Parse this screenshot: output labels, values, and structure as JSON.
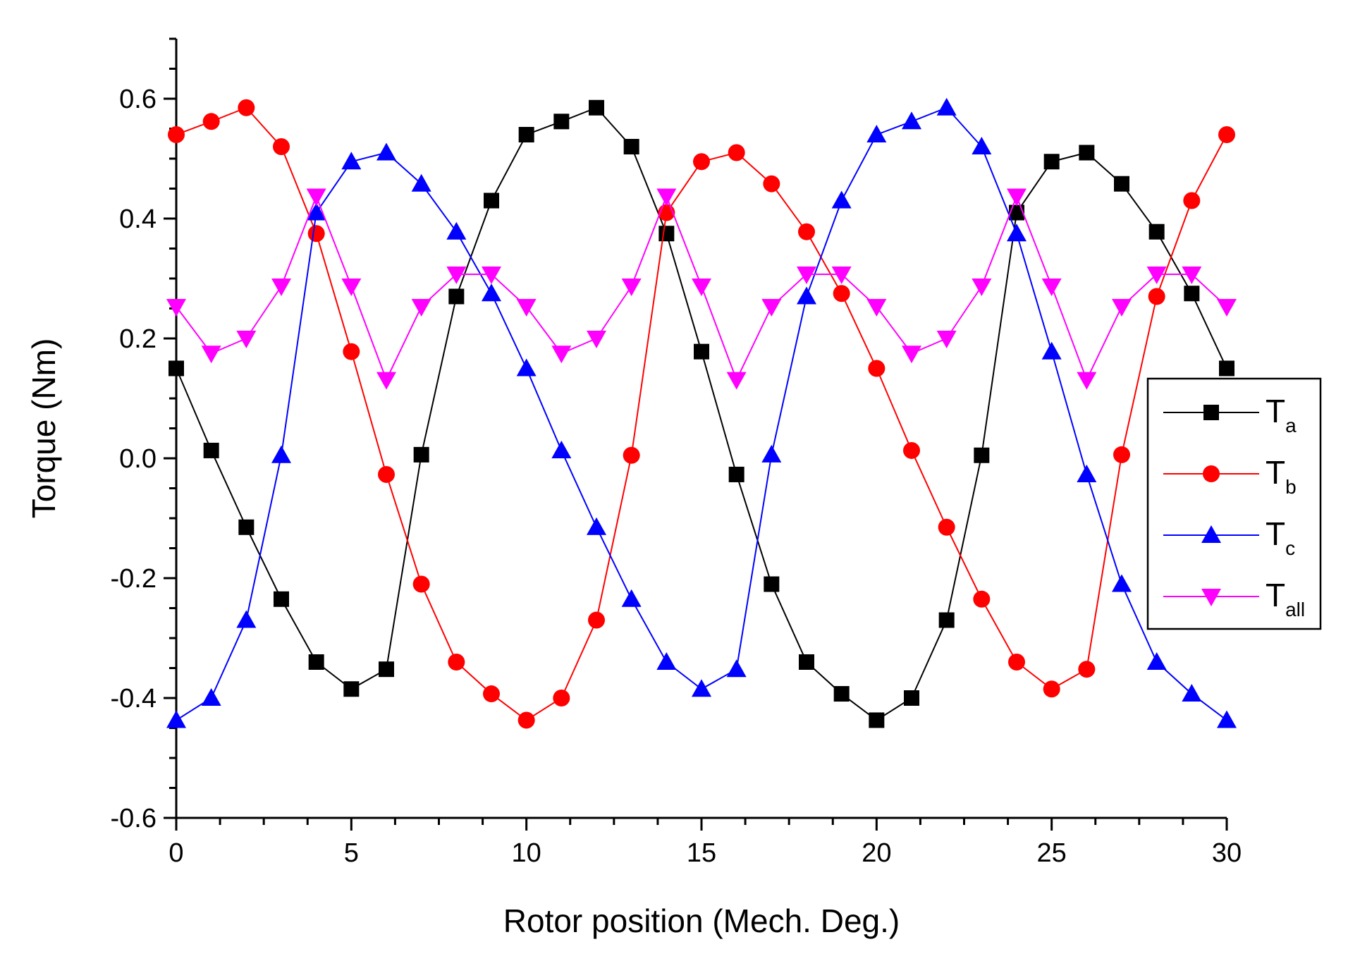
{
  "chart_data": {
    "type": "line",
    "title": "",
    "xlabel": "Rotor position (Mech. Deg.)",
    "ylabel": "Torque (Nm)",
    "xlim": [
      0,
      30
    ],
    "ylim": [
      -0.6,
      0.7
    ],
    "xticks": [
      0,
      5,
      10,
      15,
      20,
      25,
      30
    ],
    "xtick_labels": [
      "0",
      "5",
      "10",
      "15",
      "20",
      "25",
      "30"
    ],
    "yticks": [
      -0.6,
      -0.4,
      -0.2,
      0.0,
      0.2,
      0.4,
      0.6
    ],
    "ytick_labels": [
      "-0.6",
      "-0.4",
      "-0.2",
      "0.0",
      "0.2",
      "0.4",
      "0.6"
    ],
    "grid": false,
    "legend_position": "right",
    "x": [
      0,
      1,
      2,
      3,
      4,
      5,
      6,
      7,
      8,
      9,
      10,
      11,
      12,
      13,
      14,
      15,
      16,
      17,
      18,
      19,
      20,
      21,
      22,
      23,
      24,
      25,
      26,
      27,
      28,
      29,
      30
    ],
    "series": [
      {
        "name": "Ta",
        "label_main": "T",
        "label_sub": "a",
        "color": "#000000",
        "marker": "square",
        "values": [
          0.15,
          0.013,
          -0.115,
          -0.235,
          -0.34,
          -0.385,
          -0.352,
          0.006,
          0.27,
          0.43,
          0.54,
          0.562,
          0.585,
          0.52,
          0.375,
          0.178,
          -0.027,
          -0.21,
          -0.34,
          -0.393,
          -0.437,
          -0.4,
          -0.27,
          0.005,
          0.41,
          0.495,
          0.51,
          0.458,
          0.378,
          0.275,
          0.15
        ]
      },
      {
        "name": "Tb",
        "label_main": "T",
        "label_sub": "b",
        "color": "#ff0000",
        "marker": "circle",
        "values": [
          0.54,
          0.562,
          0.585,
          0.52,
          0.375,
          0.178,
          -0.027,
          -0.21,
          -0.34,
          -0.393,
          -0.437,
          -0.4,
          -0.27,
          0.005,
          0.41,
          0.495,
          0.51,
          0.458,
          0.378,
          0.275,
          0.15,
          0.013,
          -0.115,
          -0.235,
          -0.34,
          -0.385,
          -0.352,
          0.006,
          0.27,
          0.43,
          0.54
        ]
      },
      {
        "name": "Tc",
        "label_main": "T",
        "label_sub": "c",
        "color": "#0000ff",
        "marker": "triangle-up",
        "values": [
          -0.437,
          -0.4,
          -0.27,
          0.005,
          0.41,
          0.495,
          0.51,
          0.458,
          0.378,
          0.275,
          0.15,
          0.013,
          -0.115,
          -0.235,
          -0.34,
          -0.385,
          -0.352,
          0.006,
          0.27,
          0.43,
          0.54,
          0.562,
          0.585,
          0.52,
          0.375,
          0.178,
          -0.027,
          -0.21,
          -0.34,
          -0.393,
          -0.437
        ]
      },
      {
        "name": "Tall",
        "label_main": "T",
        "label_sub": "all",
        "color": "#ff00ff",
        "marker": "triangle-down",
        "values": [
          0.253,
          0.175,
          0.2,
          0.287,
          0.437,
          0.287,
          0.131,
          0.253,
          0.307,
          0.307,
          0.253,
          0.175,
          0.2,
          0.287,
          0.437,
          0.287,
          0.131,
          0.253,
          0.307,
          0.307,
          0.253,
          0.175,
          0.2,
          0.287,
          0.437,
          0.287,
          0.131,
          0.253,
          0.307,
          0.307,
          0.253
        ]
      }
    ]
  }
}
